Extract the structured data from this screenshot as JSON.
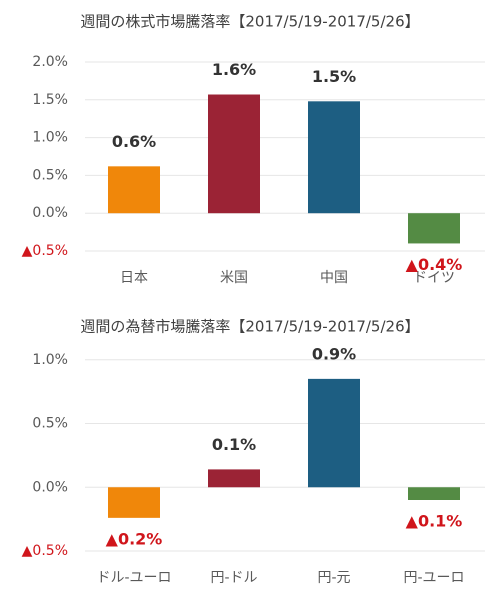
{
  "chart_data": [
    {
      "type": "bar",
      "title": "週間の株式市場騰落率【2017/5/19-2017/5/26】",
      "categories": [
        "日本",
        "米国",
        "中国",
        "ドイツ"
      ],
      "values": [
        0.62,
        1.57,
        1.48,
        -0.4
      ],
      "value_labels": [
        "0.6%",
        "1.6%",
        "1.5%",
        "▲0.4%"
      ],
      "colors": [
        "#f0870a",
        "#9b2335",
        "#1d5e82",
        "#548b44"
      ],
      "ylim": [
        -0.5,
        2.0
      ],
      "yticks": [
        {
          "value": -0.5,
          "label": "▲0.5%"
        },
        {
          "value": 0,
          "label": "0.0%"
        },
        {
          "value": 0.5,
          "label": "0.5%"
        },
        {
          "value": 1.0,
          "label": "1.0%"
        },
        {
          "value": 1.5,
          "label": "1.5%"
        },
        {
          "value": 2.0,
          "label": "2.0%"
        }
      ],
      "grid": true
    },
    {
      "type": "bar",
      "title": "週間の為替市場騰落率【2017/5/19-2017/5/26】",
      "categories": [
        "ドル-ユーロ",
        "円-ドル",
        "円-元",
        "円-ユーロ"
      ],
      "values": [
        -0.24,
        0.14,
        0.85,
        -0.1
      ],
      "value_labels": [
        "▲0.2%",
        "0.1%",
        "0.9%",
        "▲0.1%"
      ],
      "colors": [
        "#f0870a",
        "#9b2335",
        "#1d5e82",
        "#548b44"
      ],
      "ylim": [
        -0.5,
        1.1
      ],
      "yticks": [
        {
          "value": -0.5,
          "label": "▲0.5%"
        },
        {
          "value": 0,
          "label": "0.0%"
        },
        {
          "value": 0.5,
          "label": "0.5%"
        },
        {
          "value": 1.0,
          "label": "1.0%"
        }
      ],
      "grid": true
    }
  ]
}
